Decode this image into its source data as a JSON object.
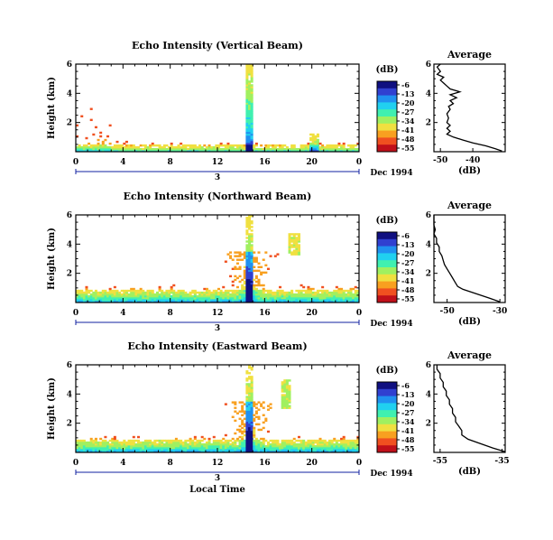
{
  "chart_data": [
    {
      "type": "heatmap",
      "title": "Echo Intensity (Vertical Beam)",
      "ylabel": "Height (km)",
      "xlim": [
        0,
        24
      ],
      "ylim": [
        0,
        6
      ],
      "xticks": [
        "0",
        "4",
        "8",
        "12",
        "16",
        "20",
        "0"
      ],
      "yticks": [
        "2",
        "4",
        "6"
      ],
      "date_day": "3",
      "date_label": "Dec 1994",
      "colorbar_unit": "(dB)",
      "colorbar_ticks": [
        "-6",
        "-13",
        "-20",
        "-27",
        "-34",
        "-41",
        "-48",
        "-55"
      ],
      "colors": [
        "#c0101a",
        "#f05020",
        "#f8a020",
        "#f0e040",
        "#a0f060",
        "#40f0b0",
        "#20d0f0",
        "#2090f0",
        "#3040d0",
        "#101080"
      ],
      "profile": {
        "title": "Average",
        "xlabel": "(dB)",
        "xticks": [
          "-50",
          "-40"
        ],
        "xlim": [
          -52,
          -30
        ],
        "yticks": [
          "2",
          "4",
          "6"
        ],
        "ylim": [
          0,
          6
        ],
        "points": [
          [
            -31,
            0.05
          ],
          [
            -33,
            0.2
          ],
          [
            -36,
            0.4
          ],
          [
            -40,
            0.6
          ],
          [
            -43,
            0.8
          ],
          [
            -46,
            1.0
          ],
          [
            -48,
            1.2
          ],
          [
            -47,
            1.4
          ],
          [
            -48,
            1.6
          ],
          [
            -47,
            1.8
          ],
          [
            -48,
            2.0
          ],
          [
            -47.5,
            2.3
          ],
          [
            -48,
            2.6
          ],
          [
            -47,
            2.9
          ],
          [
            -47.5,
            3.1
          ],
          [
            -46,
            3.3
          ],
          [
            -47,
            3.5
          ],
          [
            -45,
            3.7
          ],
          [
            -47,
            3.9
          ],
          [
            -44,
            4.1
          ],
          [
            -47,
            4.3
          ],
          [
            -48,
            4.5
          ],
          [
            -49,
            4.7
          ],
          [
            -50,
            4.9
          ],
          [
            -49,
            5.1
          ],
          [
            -51,
            5.3
          ],
          [
            -50,
            5.5
          ],
          [
            -51,
            5.8
          ],
          [
            -50,
            6.0
          ]
        ]
      }
    },
    {
      "type": "heatmap",
      "title": "Echo Intensity (Northward Beam)",
      "ylabel": "Height (km)",
      "xlim": [
        0,
        24
      ],
      "ylim": [
        0,
        6
      ],
      "xticks": [
        "0",
        "4",
        "8",
        "12",
        "16",
        "20",
        "0"
      ],
      "yticks": [
        "2",
        "4",
        "6"
      ],
      "date_day": "3",
      "date_label": "Dec 1994",
      "colorbar_unit": "(dB)",
      "colorbar_ticks": [
        "-6",
        "-13",
        "-20",
        "-27",
        "-34",
        "-41",
        "-48",
        "-55"
      ],
      "colors": [
        "#c0101a",
        "#f05020",
        "#f8a020",
        "#f0e040",
        "#a0f060",
        "#40f0b0",
        "#20d0f0",
        "#2090f0",
        "#3040d0",
        "#101080"
      ],
      "profile": {
        "title": "Average",
        "xlabel": "(dB)",
        "xticks": [
          "-50",
          "-30"
        ],
        "xlim": [
          -55,
          -28
        ],
        "yticks": [
          "2",
          "4",
          "6"
        ],
        "ylim": [
          0,
          6
        ],
        "points": [
          [
            -30,
            0.05
          ],
          [
            -34,
            0.3
          ],
          [
            -39,
            0.6
          ],
          [
            -44,
            0.9
          ],
          [
            -46,
            1.1
          ],
          [
            -47,
            1.4
          ],
          [
            -48,
            1.7
          ],
          [
            -49,
            2.0
          ],
          [
            -50,
            2.3
          ],
          [
            -51,
            2.6
          ],
          [
            -51.5,
            2.9
          ],
          [
            -52,
            3.2
          ],
          [
            -53,
            3.5
          ],
          [
            -53,
            3.8
          ],
          [
            -54,
            4.1
          ],
          [
            -54,
            4.4
          ],
          [
            -55,
            4.7
          ],
          [
            -54.5,
            5.0
          ],
          [
            -55,
            5.3
          ],
          [
            -55,
            5.6
          ],
          [
            -55,
            6.0
          ]
        ]
      }
    },
    {
      "type": "heatmap",
      "title": "Echo Intensity (Eastward Beam)",
      "ylabel": "Height (km)",
      "xlabel": "Local Time",
      "xlim": [
        0,
        24
      ],
      "ylim": [
        0,
        6
      ],
      "xticks": [
        "0",
        "4",
        "8",
        "12",
        "16",
        "20",
        "0"
      ],
      "yticks": [
        "2",
        "4",
        "6"
      ],
      "date_day": "3",
      "date_label": "Dec 1994",
      "colorbar_unit": "(dB)",
      "colorbar_ticks": [
        "-6",
        "-13",
        "-20",
        "-27",
        "-34",
        "-41",
        "-48",
        "-55"
      ],
      "colors": [
        "#c0101a",
        "#f05020",
        "#f8a020",
        "#f0e040",
        "#a0f060",
        "#40f0b0",
        "#20d0f0",
        "#2090f0",
        "#3040d0",
        "#101080"
      ],
      "profile": {
        "title": "Average",
        "xlabel": "(dB)",
        "xticks": [
          "-55",
          "-35"
        ],
        "xlim": [
          -57,
          -34
        ],
        "yticks": [
          "2",
          "4",
          "6"
        ],
        "ylim": [
          0,
          6
        ],
        "points": [
          [
            -34,
            0.05
          ],
          [
            -38,
            0.3
          ],
          [
            -42,
            0.6
          ],
          [
            -46,
            0.9
          ],
          [
            -48,
            1.2
          ],
          [
            -48,
            1.5
          ],
          [
            -49,
            1.8
          ],
          [
            -50,
            2.1
          ],
          [
            -50,
            2.4
          ],
          [
            -51,
            2.7
          ],
          [
            -51,
            3.0
          ],
          [
            -52,
            3.3
          ],
          [
            -52,
            3.6
          ],
          [
            -53,
            3.9
          ],
          [
            -53,
            4.2
          ],
          [
            -54,
            4.5
          ],
          [
            -54,
            4.8
          ],
          [
            -55,
            5.1
          ],
          [
            -55,
            5.4
          ],
          [
            -56,
            5.7
          ],
          [
            -56,
            6.0
          ]
        ]
      }
    }
  ]
}
